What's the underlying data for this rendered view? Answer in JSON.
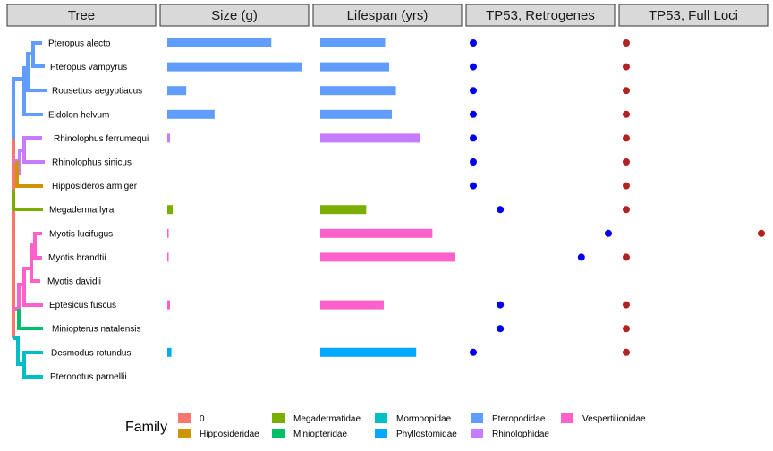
{
  "panels": {
    "tree": "Tree",
    "size": "Size (g)",
    "lifespan": "Lifespan (yrs)",
    "retro": "TP53, Retrogenes",
    "full": "TP53, Full Loci"
  },
  "legend": {
    "title": "Family",
    "items": [
      {
        "label": "0",
        "color": "#F8766D"
      },
      {
        "label": "Hipposideridae",
        "color": "#CD9600"
      },
      {
        "label": "Megadermatidae",
        "color": "#7CAE00"
      },
      {
        "label": "Miniopteridae",
        "color": "#00BE67"
      },
      {
        "label": "Mormoopidae",
        "color": "#00BFC4"
      },
      {
        "label": "Phyllostomidae",
        "color": "#00A9FF"
      },
      {
        "label": "Pteropodidae",
        "color": "#619CFF"
      },
      {
        "label": "Rhinolophidae",
        "color": "#C77CFF"
      },
      {
        "label": "Vespertilionidae",
        "color": "#FF61CC"
      }
    ]
  },
  "chart_data": {
    "type": "bar",
    "species": [
      {
        "name": "Pteropus alecto",
        "family": "Pteropodidae",
        "size": 0.77,
        "lifespan": 0.48,
        "retrogenes": 0,
        "full_loci": 1
      },
      {
        "name": "Pteropus vampyrus",
        "family": "Pteropodidae",
        "size": 1.0,
        "lifespan": 0.51,
        "retrogenes": 0,
        "full_loci": 1
      },
      {
        "name": "Rousettus aegyptiacus",
        "family": "Pteropodidae",
        "size": 0.14,
        "lifespan": 0.56,
        "retrogenes": 0,
        "full_loci": 1
      },
      {
        "name": "Eidolon helvum",
        "family": "Pteropodidae",
        "size": 0.35,
        "lifespan": 0.53,
        "retrogenes": 0,
        "full_loci": 1
      },
      {
        "name": "Rhinolophus ferrumequi",
        "family": "Rhinolophidae",
        "size": 0.02,
        "lifespan": 0.74,
        "retrogenes": 0,
        "full_loci": 1
      },
      {
        "name": "Rhinolophus sinicus",
        "family": "Rhinolophidae",
        "size": null,
        "lifespan": null,
        "retrogenes": 0,
        "full_loci": 1
      },
      {
        "name": "Hipposideros armiger",
        "family": "Hipposideridae",
        "size": null,
        "lifespan": null,
        "retrogenes": 0,
        "full_loci": 1
      },
      {
        "name": "Megaderma lyra",
        "family": "Megadermatidae",
        "size": 0.04,
        "lifespan": 0.34,
        "retrogenes": 1,
        "full_loci": 1
      },
      {
        "name": "Myotis lucifugus",
        "family": "Vespertilionidae",
        "size": 0.01,
        "lifespan": 0.83,
        "retrogenes": 5,
        "full_loci": 2
      },
      {
        "name": "Myotis brandtii",
        "family": "Vespertilionidae",
        "size": 0.005,
        "lifespan": 1.0,
        "retrogenes": 4,
        "full_loci": 1
      },
      {
        "name": "Myotis davidii",
        "family": "Vespertilionidae",
        "size": null,
        "lifespan": null,
        "retrogenes": null,
        "full_loci": null
      },
      {
        "name": "Eptesicus fuscus",
        "family": "Vespertilionidae",
        "size": 0.02,
        "lifespan": 0.47,
        "retrogenes": 1,
        "full_loci": 1
      },
      {
        "name": "Miniopterus natalensis",
        "family": "Miniopteridae",
        "size": null,
        "lifespan": null,
        "retrogenes": 1,
        "full_loci": 1
      },
      {
        "name": "Desmodus rotundus",
        "family": "Phyllostomidae",
        "size": 0.03,
        "lifespan": 0.71,
        "retrogenes": 0,
        "full_loci": 1
      },
      {
        "name": "Pteronotus parnellii",
        "family": "Mormoopidae",
        "size": null,
        "lifespan": null,
        "retrogenes": null,
        "full_loci": null
      }
    ],
    "size_max": 1.0,
    "lifespan_max": 1.0,
    "retro_range": [
      0,
      5
    ],
    "full_range": [
      1,
      2
    ],
    "retro_color": "#0000EE",
    "full_color": "#B22222",
    "strip_fill": "#D9D9D9",
    "grid": false
  }
}
